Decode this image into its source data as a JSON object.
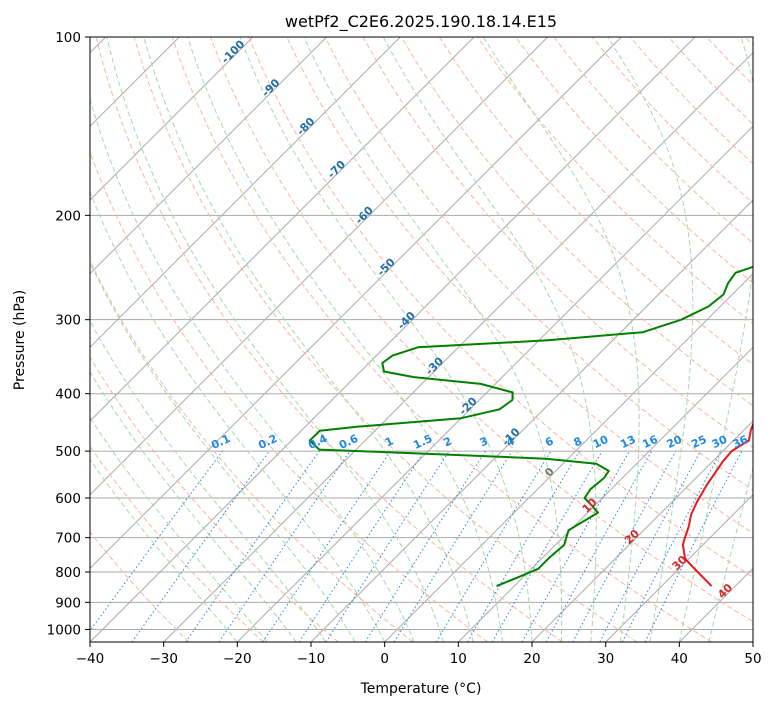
{
  "chart_data": {
    "type": "line",
    "title": "wetPf2_C2E6.2025.190.18.14.E15",
    "xlabel": "Temperature (°C)",
    "ylabel": "Pressure (hPa)",
    "xlim": [
      -40,
      50
    ],
    "ylim": [
      1050,
      100
    ],
    "y_scale": "log",
    "x_ticks": [
      -40,
      -30,
      -20,
      -10,
      0,
      10,
      20,
      30,
      40,
      50
    ],
    "y_ticks": [
      100,
      200,
      300,
      400,
      500,
      600,
      700,
      800,
      900,
      1000
    ],
    "grid": true,
    "colors": {
      "temperature": "#e41a1c",
      "dewpoint": "#008000",
      "isotherm": "#aaaaaa",
      "dry_adiabat": "#fbb4a0",
      "moist_adiabat": "#a6d8a6",
      "mixing_ratio": "#1e88e5"
    },
    "series": [
      {
        "values": [
          [
            845,
            36.8
          ],
          [
            800,
            33
          ],
          [
            760,
            29.5
          ],
          [
            720,
            27.3
          ],
          [
            700,
            26.6
          ],
          [
            670,
            25.6
          ],
          [
            640,
            24.3
          ],
          [
            610,
            23.4
          ],
          [
            570,
            22.4
          ],
          [
            540,
            21.8
          ],
          [
            520,
            21.4
          ],
          [
            500,
            21.2
          ],
          [
            490,
            21.6
          ],
          [
            480,
            22.1
          ],
          [
            460,
            20.9
          ],
          [
            430,
            19.5
          ],
          [
            410,
            18.6
          ],
          [
            380,
            18.3
          ],
          [
            355,
            17.9
          ],
          [
            330,
            17.8
          ],
          [
            300,
            15.8
          ],
          [
            280,
            14.4
          ],
          [
            260,
            14.1
          ],
          [
            240,
            12.7
          ],
          [
            210,
            9.7
          ],
          [
            190,
            7.1
          ],
          [
            170,
            4.2
          ],
          [
            150,
            3.2
          ],
          [
            130,
            2.9
          ],
          [
            115,
            3.3
          ],
          [
            100,
            3.6
          ]
        ]
      },
      {
        "values": [
          [
            845,
            7.6
          ],
          [
            820,
            9.1
          ],
          [
            790,
            10.9
          ],
          [
            760,
            10.9
          ],
          [
            720,
            11.2
          ],
          [
            700,
            10.5
          ],
          [
            680,
            9.8
          ],
          [
            660,
            10.5
          ],
          [
            635,
            11.4
          ],
          [
            615,
            9.3
          ],
          [
            600,
            7.6
          ],
          [
            580,
            7.2
          ],
          [
            555,
            7.5
          ],
          [
            540,
            7.2
          ],
          [
            525,
            4.5
          ],
          [
            515,
            -3
          ],
          [
            505,
            -20
          ],
          [
            497,
            -35
          ],
          [
            480,
            -37.5
          ],
          [
            462,
            -37.5
          ],
          [
            455,
            -33
          ],
          [
            440,
            -20
          ],
          [
            425,
            -16
          ],
          [
            410,
            -15.5
          ],
          [
            398,
            -16.5
          ],
          [
            385,
            -22
          ],
          [
            375,
            -32
          ],
          [
            367,
            -36.8
          ],
          [
            355,
            -38.2
          ],
          [
            345,
            -37.8
          ],
          [
            334,
            -35.5
          ],
          [
            325,
            -18.8
          ],
          [
            315,
            -7
          ],
          [
            300,
            -3.5
          ],
          [
            285,
            -1.6
          ],
          [
            272,
            -1.2
          ],
          [
            260,
            -2.1
          ],
          [
            250,
            -2.5
          ],
          [
            240,
            0.2
          ],
          [
            220,
            1.3
          ],
          [
            200,
            1.1
          ],
          [
            180,
            0.5
          ],
          [
            165,
            -1.6
          ],
          [
            150,
            -1.4
          ],
          [
            137,
            -0.2
          ],
          [
            130,
            -0.4
          ],
          [
            120,
            -0.1
          ],
          [
            110,
            1.2
          ],
          [
            100,
            3.1
          ]
        ]
      }
    ],
    "mixing_ratio_labels": [
      "0.1",
      "0.2",
      "0.4",
      "0.6",
      "1",
      "1.5",
      "2",
      "3",
      "4",
      "6",
      "8",
      "10",
      "13",
      "16",
      "20",
      "25",
      "30",
      "36"
    ],
    "dry_adiabat_labels": [
      "-100",
      "-90",
      "-80",
      "-70",
      "-60",
      "-50",
      "-40",
      "-30",
      "-20",
      "-10"
    ],
    "moist_adiabat_labels": [
      "0",
      "10",
      "20",
      "30",
      "40"
    ]
  }
}
